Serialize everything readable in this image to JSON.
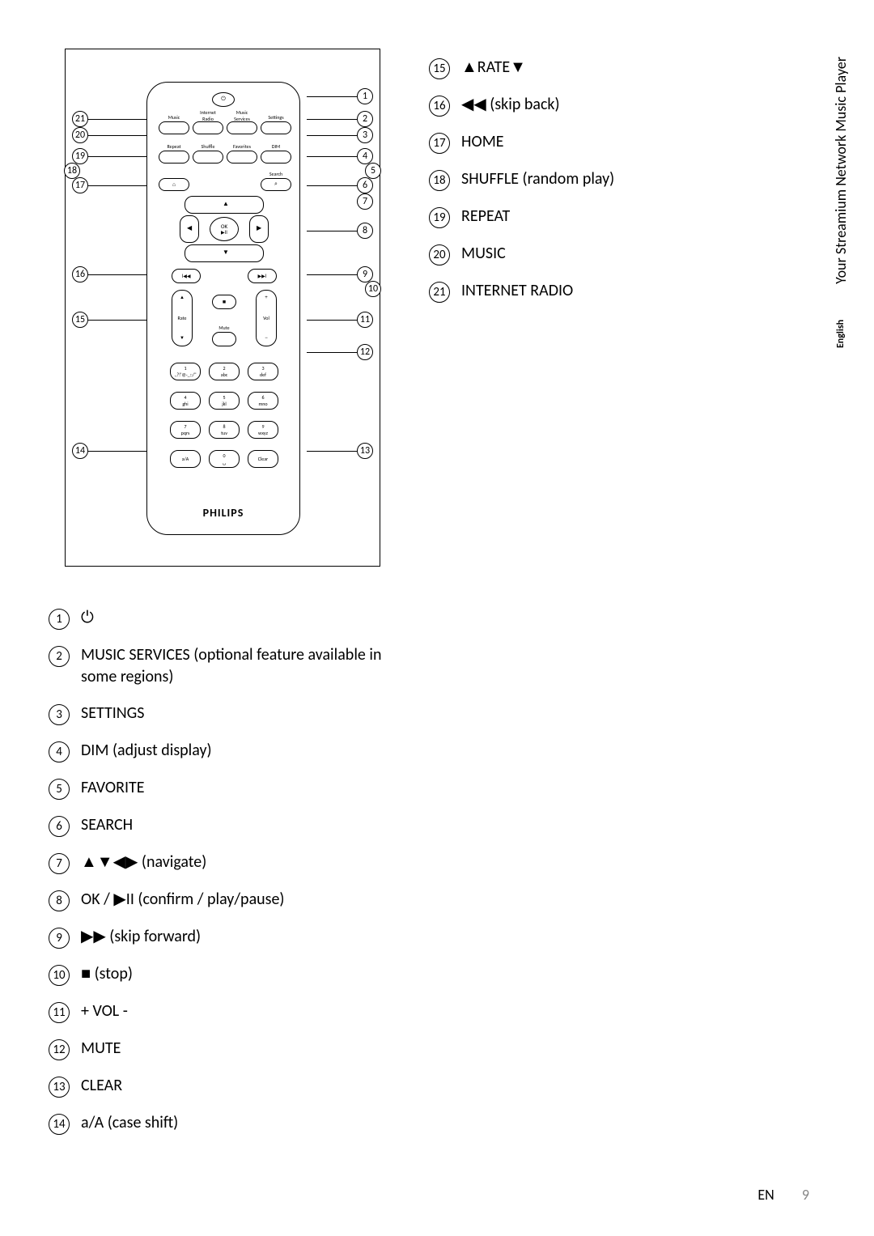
{
  "brand": "PHILIPS",
  "side_tab": {
    "lang": "English",
    "title": "Your Streamium Network Music Player"
  },
  "footer": {
    "lang": "EN",
    "page": "9"
  },
  "remote": {
    "buttons": {
      "power": "⏻",
      "music": "Music",
      "internet_radio_top": "Internet",
      "internet_radio_bot": "Radio",
      "music_services_top": "Music",
      "music_services_bot": "Services",
      "settings": "Settings",
      "repeat": "Repeat",
      "shuffle": "Shuffle",
      "favorites": "Favorites",
      "dim": "DIM",
      "search_label": "Search",
      "search_icon": "⌕",
      "home": "⌂",
      "ok": "OK",
      "playpause": "▶ІІ",
      "up": "▲",
      "down": "▼",
      "left": "◀",
      "right": "▶",
      "skip_back": "І◀◀",
      "skip_fwd": "▶▶І",
      "stop": "■",
      "rate": "Rate",
      "rate_up": "▲",
      "rate_down": "▼",
      "vol": "Vol",
      "vol_up": "+",
      "vol_dn": "−",
      "mute": "Mute",
      "keys": [
        {
          "n": "1",
          "s": ".,?!'@-_:;/\""
        },
        {
          "n": "2",
          "s": "abc"
        },
        {
          "n": "3",
          "s": "def"
        },
        {
          "n": "4",
          "s": "ghi"
        },
        {
          "n": "5",
          "s": "jkl"
        },
        {
          "n": "6",
          "s": "mno"
        },
        {
          "n": "7",
          "s": "pqrs"
        },
        {
          "n": "8",
          "s": "tuv"
        },
        {
          "n": "9",
          "s": "wxyz"
        },
        {
          "n": "a/A",
          "s": ""
        },
        {
          "n": "0",
          "s": "␣"
        },
        {
          "n": "Clear",
          "s": ""
        }
      ]
    }
  },
  "legend_left": [
    {
      "n": "1",
      "t": "⏻"
    },
    {
      "n": "2",
      "t": "MUSIC SERVICES (optional feature available in some regions)"
    },
    {
      "n": "3",
      "t": "SETTINGS"
    },
    {
      "n": "4",
      "t": "DIM (adjust display)"
    },
    {
      "n": "5",
      "t": "FAVORITE"
    },
    {
      "n": "6",
      "t": "SEARCH"
    },
    {
      "n": "7",
      "t": "▲▼◀▶ (navigate)"
    },
    {
      "n": "8",
      "t": "OK / ▶ІІ (confirm / play/pause)"
    },
    {
      "n": "9",
      "t": "▶▶ (skip forward)"
    },
    {
      "n": "10",
      "t": "■ (stop)"
    },
    {
      "n": "11",
      "t": "+ VOL -"
    },
    {
      "n": "12",
      "t": "MUTE"
    },
    {
      "n": "13",
      "t": "CLEAR"
    },
    {
      "n": "14",
      "t": "a/A (case shift)"
    }
  ],
  "legend_right": [
    {
      "n": "15",
      "t": "▲RATE▼"
    },
    {
      "n": "16",
      "t": "◀◀ (skip back)"
    },
    {
      "n": "17",
      "t": "HOME"
    },
    {
      "n": "18",
      "t": "SHUFFLE (random play)"
    },
    {
      "n": "19",
      "t": "REPEAT"
    },
    {
      "n": "20",
      "t": "MUSIC"
    },
    {
      "n": "21",
      "t": "INTERNET RADIO"
    }
  ]
}
